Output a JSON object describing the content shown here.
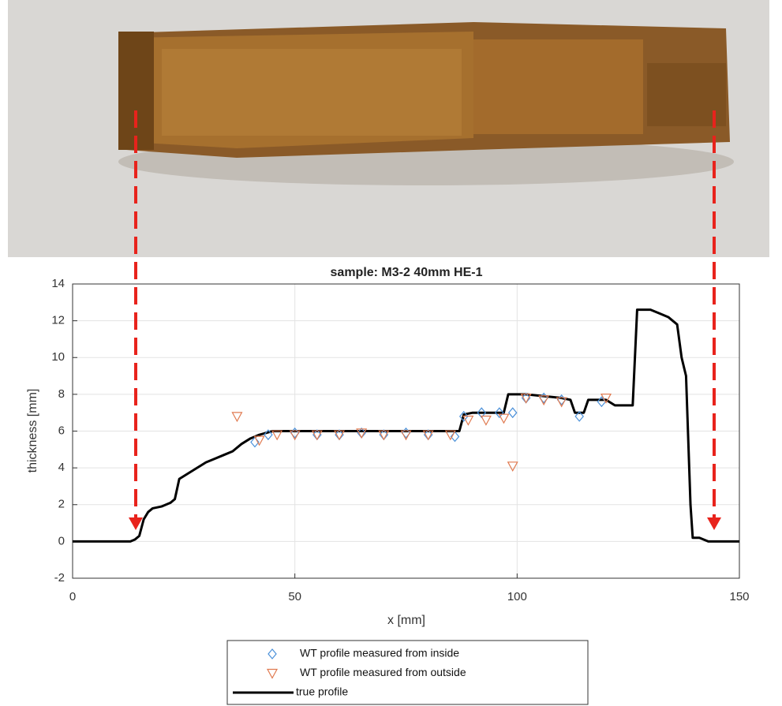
{
  "chart_data": {
    "type": "line",
    "title": "sample: M3-2 40mm HE-1",
    "x_label": "x [mm]",
    "y_label": "thickness [mm]",
    "xlim": [
      0,
      150
    ],
    "xticks": [
      0,
      50,
      100,
      150
    ],
    "ylim": [
      -2,
      14
    ],
    "yticks": [
      -2,
      0,
      2,
      4,
      6,
      8,
      10,
      12,
      14
    ],
    "grid": true,
    "series": [
      {
        "name": "WT profile measured from inside",
        "color": "#4a90d9",
        "marker": "diamond",
        "x": [
          41,
          44,
          50,
          55,
          60,
          65,
          70,
          75,
          80,
          86,
          88,
          92,
          96,
          99,
          102,
          106,
          110,
          114,
          119
        ],
        "values": [
          5.4,
          5.8,
          5.9,
          5.8,
          5.8,
          5.9,
          5.8,
          5.9,
          5.8,
          5.7,
          6.8,
          7.0,
          7.0,
          7.0,
          7.8,
          7.8,
          7.7,
          6.8,
          7.6
        ]
      },
      {
        "name": "WT profile measured from outside",
        "color": "#e07a50",
        "marker": "triangle-down",
        "x": [
          37,
          42,
          46,
          50,
          55,
          60,
          65,
          70,
          75,
          80,
          85,
          89,
          93,
          97,
          99,
          102,
          106,
          110,
          120
        ],
        "values": [
          6.8,
          5.5,
          5.8,
          5.8,
          5.8,
          5.8,
          5.9,
          5.8,
          5.8,
          5.8,
          5.8,
          6.6,
          6.6,
          6.7,
          4.1,
          7.8,
          7.7,
          7.6,
          7.8
        ]
      },
      {
        "name": "true profile",
        "color": "#000000",
        "x": [
          0,
          13,
          14,
          15,
          16,
          17,
          18,
          20,
          22,
          23,
          24,
          26,
          28,
          30,
          32,
          34,
          36,
          38,
          40,
          42,
          45,
          50,
          60,
          70,
          80,
          87,
          88,
          90,
          97,
          98,
          102,
          110,
          112,
          113,
          115,
          116,
          118,
          120,
          122,
          126,
          127,
          130,
          132,
          134,
          136,
          137,
          138,
          139,
          139.5,
          141,
          143,
          150
        ],
        "values": [
          0,
          0,
          0.1,
          0.3,
          1.2,
          1.6,
          1.8,
          1.9,
          2.1,
          2.3,
          3.4,
          3.7,
          4.0,
          4.3,
          4.5,
          4.7,
          4.9,
          5.3,
          5.6,
          5.8,
          6.0,
          6.0,
          6.0,
          6.0,
          6.0,
          6.0,
          6.9,
          7.0,
          7.0,
          8.0,
          8.0,
          7.8,
          7.7,
          7.0,
          7.0,
          7.7,
          7.7,
          7.7,
          7.4,
          7.4,
          12.6,
          12.6,
          12.4,
          12.2,
          11.8,
          10.0,
          9.0,
          2,
          0.2,
          0.2,
          0,
          0
        ]
      }
    ]
  }
}
